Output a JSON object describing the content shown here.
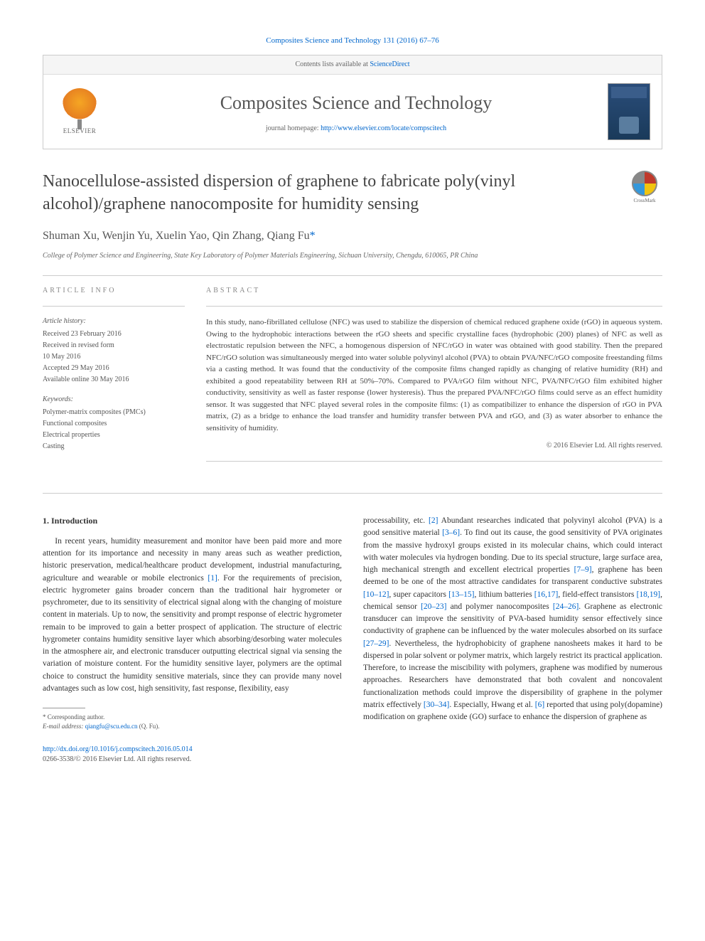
{
  "citation": "Composites Science and Technology 131 (2016) 67–76",
  "header": {
    "contents_label": "Contents lists available at ",
    "contents_link": "ScienceDirect",
    "journal_name": "Composites Science and Technology",
    "homepage_label": "journal homepage: ",
    "homepage_url": "http://www.elsevier.com/locate/compscitech",
    "publisher": "ELSEVIER"
  },
  "title": "Nanocellulose-assisted dispersion of graphene to fabricate poly(vinyl alcohol)/graphene nanocomposite for humidity sensing",
  "crossmark": "CrossMark",
  "authors": "Shuman Xu, Wenjin Yu, Xuelin Yao, Qin Zhang, Qiang Fu",
  "corr_marker": "*",
  "affiliation": "College of Polymer Science and Engineering, State Key Laboratory of Polymer Materials Engineering, Sichuan University, Chengdu, 610065, PR China",
  "info": {
    "label": "ARTICLE INFO",
    "history_label": "Article history:",
    "history": [
      "Received 23 February 2016",
      "Received in revised form",
      "10 May 2016",
      "Accepted 29 May 2016",
      "Available online 30 May 2016"
    ],
    "keywords_label": "Keywords:",
    "keywords": [
      "Polymer-matrix composites (PMCs)",
      "Functional composites",
      "Electrical properties",
      "Casting"
    ]
  },
  "abstract": {
    "label": "ABSTRACT",
    "text": "In this study, nano-fibrillated cellulose (NFC) was used to stabilize the dispersion of chemical reduced graphene oxide (rGO) in aqueous system. Owing to the hydrophobic interactions between the rGO sheets and specific crystalline faces (hydrophobic (200) planes) of NFC as well as electrostatic repulsion between the NFC, a homogenous dispersion of NFC/rGO in water was obtained with good stability. Then the prepared NFC/rGO solution was simultaneously merged into water soluble polyvinyl alcohol (PVA) to obtain PVA/NFC/rGO composite freestanding films via a casting method. It was found that the conductivity of the composite films changed rapidly as changing of relative humidity (RH) and exhibited a good repeatability between RH at 50%–70%. Compared to PVA/rGO film without NFC, PVA/NFC/rGO film exhibited higher conductivity, sensitivity as well as faster response (lower hysteresis). Thus the prepared PVA/NFC/rGO films could serve as an effect humidity sensor. It was suggested that NFC played several roles in the composite films: (1) as compatibilizer to enhance the dispersion of rGO in PVA matrix, (2) as a bridge to enhance the load transfer and humidity transfer between PVA and rGO, and (3) as water absorber to enhance the sensitivity of humidity.",
    "copyright": "© 2016 Elsevier Ltd. All rights reserved."
  },
  "section1": {
    "heading": "1. Introduction",
    "col1": "In recent years, humidity measurement and monitor have been paid more and more attention for its importance and necessity in many areas such as weather prediction, historic preservation, medical/healthcare product development, industrial manufacturing, agriculture and wearable or mobile electronics [1]. For the requirements of precision, electric hygrometer gains broader concern than the traditional hair hygrometer or psychrometer, due to its sensitivity of electrical signal along with the changing of moisture content in materials. Up to now, the sensitivity and prompt response of electric hygrometer remain to be improved to gain a better prospect of application. The structure of electric hygrometer contains humidity sensitive layer which absorbing/desorbing water molecules in the atmosphere air, and electronic transducer outputting electrical signal via sensing the variation of moisture content. For the humidity sensitive layer, polymers are the optimal choice to construct the humidity sensitive materials, since they can provide many novel advantages such as low cost, high sensitivity, fast response, flexibility, easy",
    "col2": "processability, etc. [2] Abundant researches indicated that polyvinyl alcohol (PVA) is a good sensitive material [3–6]. To find out its cause, the good sensitivity of PVA originates from the massive hydroxyl groups existed in its molecular chains, which could interact with water molecules via hydrogen bonding. Due to its special structure, large surface area, high mechanical strength and excellent electrical properties [7–9], graphene has been deemed to be one of the most attractive candidates for transparent conductive substrates [10–12], super capacitors [13–15], lithium batteries [16,17], field-effect transistors [18,19], chemical sensor [20–23] and polymer nanocomposites [24–26]. Graphene as electronic transducer can improve the sensitivity of PVA-based humidity sensor effectively since conductivity of graphene can be influenced by the water molecules absorbed on its surface [27–29]. Nevertheless, the hydrophobicity of graphene nanosheets makes it hard to be dispersed in polar solvent or polymer matrix, which largely restrict its practical application. Therefore, to increase the miscibility with polymers, graphene was modified by numerous approaches. Researchers have demonstrated that both covalent and noncovalent functionalization methods could improve the dispersibility of graphene in the polymer matrix effectively [30–34]. Especially, Hwang et al. [6] reported that using poly(dopamine) modification on graphene oxide (GO) surface to enhance the dispersion of graphene as"
  },
  "footnote": {
    "corr": "* Corresponding author.",
    "email_label": "E-mail address: ",
    "email": "qiangfu@scu.edu.cn",
    "email_who": " (Q. Fu)."
  },
  "footer": {
    "doi": "http://dx.doi.org/10.1016/j.compscitech.2016.05.014",
    "issn": "0266-3538/© 2016 Elsevier Ltd. All rights reserved."
  },
  "colors": {
    "link": "#0066cc",
    "text": "#333333",
    "muted": "#666666",
    "border": "#cccccc"
  }
}
